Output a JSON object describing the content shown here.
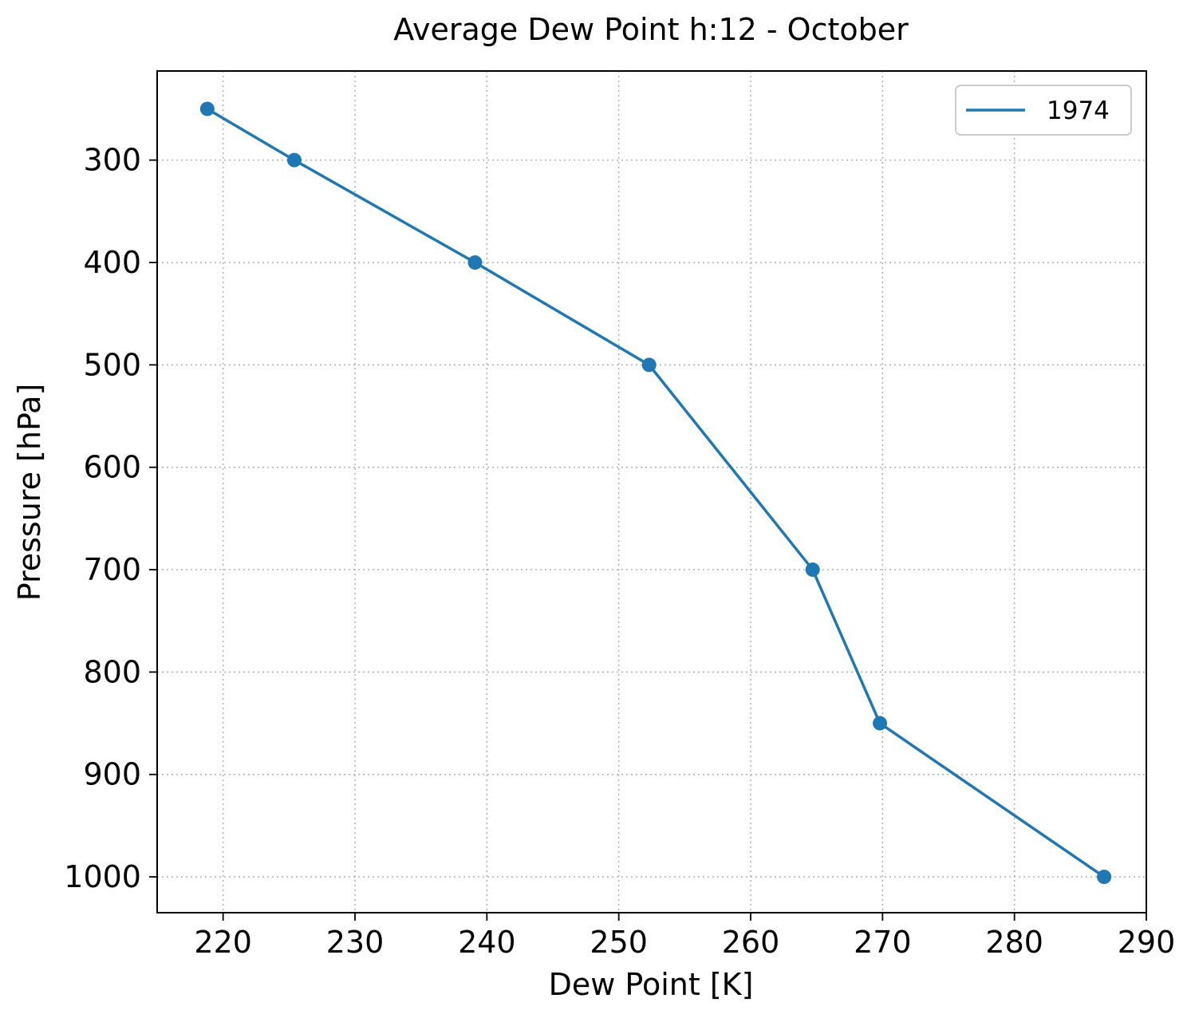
{
  "chart_data": {
    "type": "line",
    "title": "Average Dew Point h:12 - October",
    "xlabel": "Dew Point [K]",
    "ylabel": "Pressure [hPa]",
    "xlim": [
      215,
      290
    ],
    "ylim": [
      1035,
      213
    ],
    "y_inverted": true,
    "x_ticks": [
      220,
      230,
      240,
      250,
      260,
      270,
      280,
      290
    ],
    "y_ticks": [
      300,
      400,
      500,
      600,
      700,
      800,
      900,
      1000
    ],
    "grid": true,
    "legend_position": "top-right",
    "series": [
      {
        "name": "1974",
        "color": "#1f77b4",
        "markers": true,
        "points": [
          {
            "x": 218.8,
            "y": 250
          },
          {
            "x": 225.4,
            "y": 300
          },
          {
            "x": 239.1,
            "y": 400
          },
          {
            "x": 252.3,
            "y": 500
          },
          {
            "x": 264.7,
            "y": 700
          },
          {
            "x": 269.8,
            "y": 850
          },
          {
            "x": 286.8,
            "y": 1000
          }
        ]
      }
    ]
  }
}
